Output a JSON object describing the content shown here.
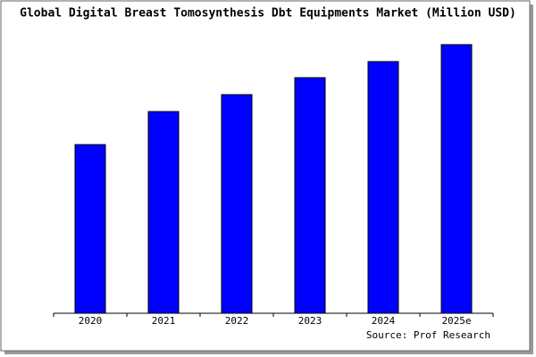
{
  "chart_data": {
    "type": "bar",
    "title": "Global Digital Breast Tomosynthesis Dbt Equipments Market (Million USD)",
    "source": "Source: Prof Research",
    "categories": [
      "2020",
      "2021",
      "2022",
      "2023",
      "2024",
      "2025e"
    ],
    "values": [
      189,
      226,
      245,
      264,
      282,
      301
    ],
    "color": "#0000ff",
    "ylim": [
      0,
      303
    ]
  }
}
